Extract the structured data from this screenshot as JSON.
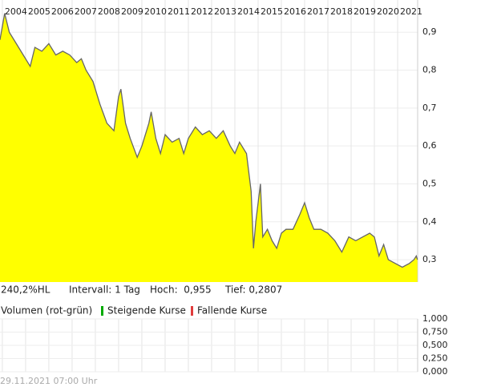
{
  "chart_data": [
    {
      "type": "area",
      "line_color": "#666666",
      "fill_color": "#ffff00",
      "grid": true,
      "x": [
        2003.9,
        2004.1,
        2004.3,
        2004.6,
        2004.9,
        2005.2,
        2005.4,
        2005.7,
        2006.0,
        2006.3,
        2006.6,
        2006.9,
        2007.2,
        2007.4,
        2007.6,
        2007.9,
        2008.2,
        2008.5,
        2008.8,
        2009.0,
        2009.1,
        2009.3,
        2009.5,
        2009.8,
        2010.0,
        2010.3,
        2010.4,
        2010.6,
        2010.8,
        2011.0,
        2011.3,
        2011.6,
        2011.8,
        2012.0,
        2012.3,
        2012.6,
        2012.9,
        2013.2,
        2013.5,
        2013.8,
        2014.0,
        2014.2,
        2014.5,
        2014.7,
        2014.8,
        2014.9,
        2015.1,
        2015.2,
        2015.4,
        2015.6,
        2015.8,
        2016.0,
        2016.2,
        2016.5,
        2016.8,
        2017.0,
        2017.2,
        2017.4,
        2017.7,
        2018.0,
        2018.3,
        2018.6,
        2018.9,
        2019.2,
        2019.5,
        2019.8,
        2020.0,
        2020.2,
        2020.4,
        2020.6,
        2020.9,
        2021.2,
        2021.5,
        2021.7,
        2021.8,
        2021.85
      ],
      "values": [
        0.88,
        0.95,
        0.9,
        0.87,
        0.84,
        0.81,
        0.86,
        0.85,
        0.87,
        0.84,
        0.85,
        0.84,
        0.82,
        0.83,
        0.8,
        0.77,
        0.71,
        0.66,
        0.64,
        0.73,
        0.75,
        0.66,
        0.62,
        0.57,
        0.6,
        0.66,
        0.69,
        0.62,
        0.58,
        0.63,
        0.61,
        0.62,
        0.58,
        0.62,
        0.65,
        0.63,
        0.64,
        0.62,
        0.64,
        0.6,
        0.58,
        0.61,
        0.58,
        0.48,
        0.33,
        0.4,
        0.5,
        0.36,
        0.38,
        0.35,
        0.33,
        0.37,
        0.38,
        0.38,
        0.42,
        0.45,
        0.41,
        0.38,
        0.38,
        0.37,
        0.35,
        0.32,
        0.36,
        0.35,
        0.36,
        0.37,
        0.36,
        0.31,
        0.34,
        0.3,
        0.29,
        0.28,
        0.29,
        0.3,
        0.31,
        0.3
      ],
      "xlim": [
        2003.9,
        2021.86
      ],
      "xticks": [
        2004,
        2005,
        2006,
        2007,
        2008,
        2009,
        2010,
        2011,
        2012,
        2013,
        2014,
        2015,
        2016,
        2017,
        2018,
        2019,
        2020,
        2021
      ],
      "ylim": [
        0.241,
        0.985
      ],
      "yticks": [
        {
          "value": 0.3,
          "label": "0,3"
        },
        {
          "value": 0.4,
          "label": "0,4"
        },
        {
          "value": 0.5,
          "label": "0,5"
        },
        {
          "value": 0.6,
          "label": "0,6"
        },
        {
          "value": 0.7,
          "label": "0,7"
        },
        {
          "value": 0.8,
          "label": "0,8"
        },
        {
          "value": 0.9,
          "label": "0,9"
        }
      ]
    },
    {
      "type": "bar",
      "title": "Volumen (rot-grün)",
      "grid": true,
      "series": [
        {
          "name": "Steigende Kurse",
          "color": "#00aa00",
          "values": []
        },
        {
          "name": "Fallende Kurse",
          "color": "#e03c3c",
          "values": []
        }
      ],
      "ylim": [
        0,
        1
      ],
      "yticks": [
        {
          "value": 1,
          "label": "1,000"
        },
        {
          "value": 0.75,
          "label": "0,750"
        },
        {
          "value": 0.5,
          "label": "0,500"
        },
        {
          "value": 0.25,
          "label": "0,250"
        },
        {
          "value": 0,
          "label": "0,000"
        }
      ]
    }
  ],
  "info": {
    "range": "240,2%HL",
    "interval": "Intervall: 1 Tag",
    "high": "Hoch:  0,955",
    "low": "Tief: 0,2807"
  },
  "footer": "29.11.2021 07:00 Uhr"
}
